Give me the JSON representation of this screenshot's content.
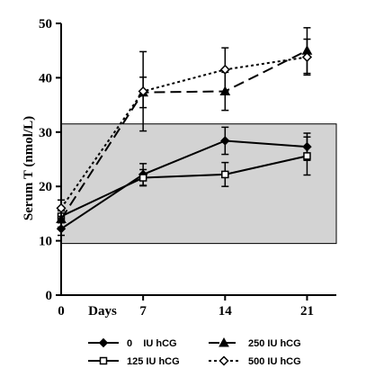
{
  "chart_data": {
    "type": "line",
    "ylabel": "Serum T (nmol/L)",
    "xlabel": "Days",
    "x": [
      0,
      7,
      14,
      21
    ],
    "x_ticks": [
      "0",
      "7",
      "14",
      "21"
    ],
    "y_ticks": [
      "0",
      "10",
      "20",
      "30",
      "40",
      "50"
    ],
    "xlim": [
      0,
      23.5
    ],
    "ylim": [
      0,
      50
    ],
    "reference_band": {
      "from": 9.5,
      "to": 31.5,
      "color": "#d3d3d3"
    },
    "grid": false,
    "legend_position": "bottom",
    "series": [
      {
        "name": "0    IU hCG",
        "marker": "filled-diamond",
        "line": "solid",
        "values": [
          12.2,
          22.2,
          28.4,
          27.3
        ],
        "errors": [
          1.2,
          2.0,
          2.5,
          2.5
        ]
      },
      {
        "name": "125 IU hCG",
        "marker": "open-square",
        "line": "solid",
        "values": [
          14.5,
          21.6,
          22.2,
          25.6
        ],
        "errors": [
          1.2,
          1.5,
          2.2,
          3.5
        ]
      },
      {
        "name": "250 IU hCG",
        "marker": "filled-triangle",
        "line": "dashed",
        "values": [
          14.0,
          37.3,
          37.5,
          45.0
        ],
        "errors": [
          1.5,
          2.8,
          3.5,
          4.2
        ]
      },
      {
        "name": "500 IU hCG",
        "marker": "open-diamond",
        "line": "dotted",
        "values": [
          16.0,
          37.5,
          41.5,
          43.8
        ],
        "errors": [
          1.5,
          7.3,
          4.0,
          3.3
        ]
      }
    ]
  }
}
